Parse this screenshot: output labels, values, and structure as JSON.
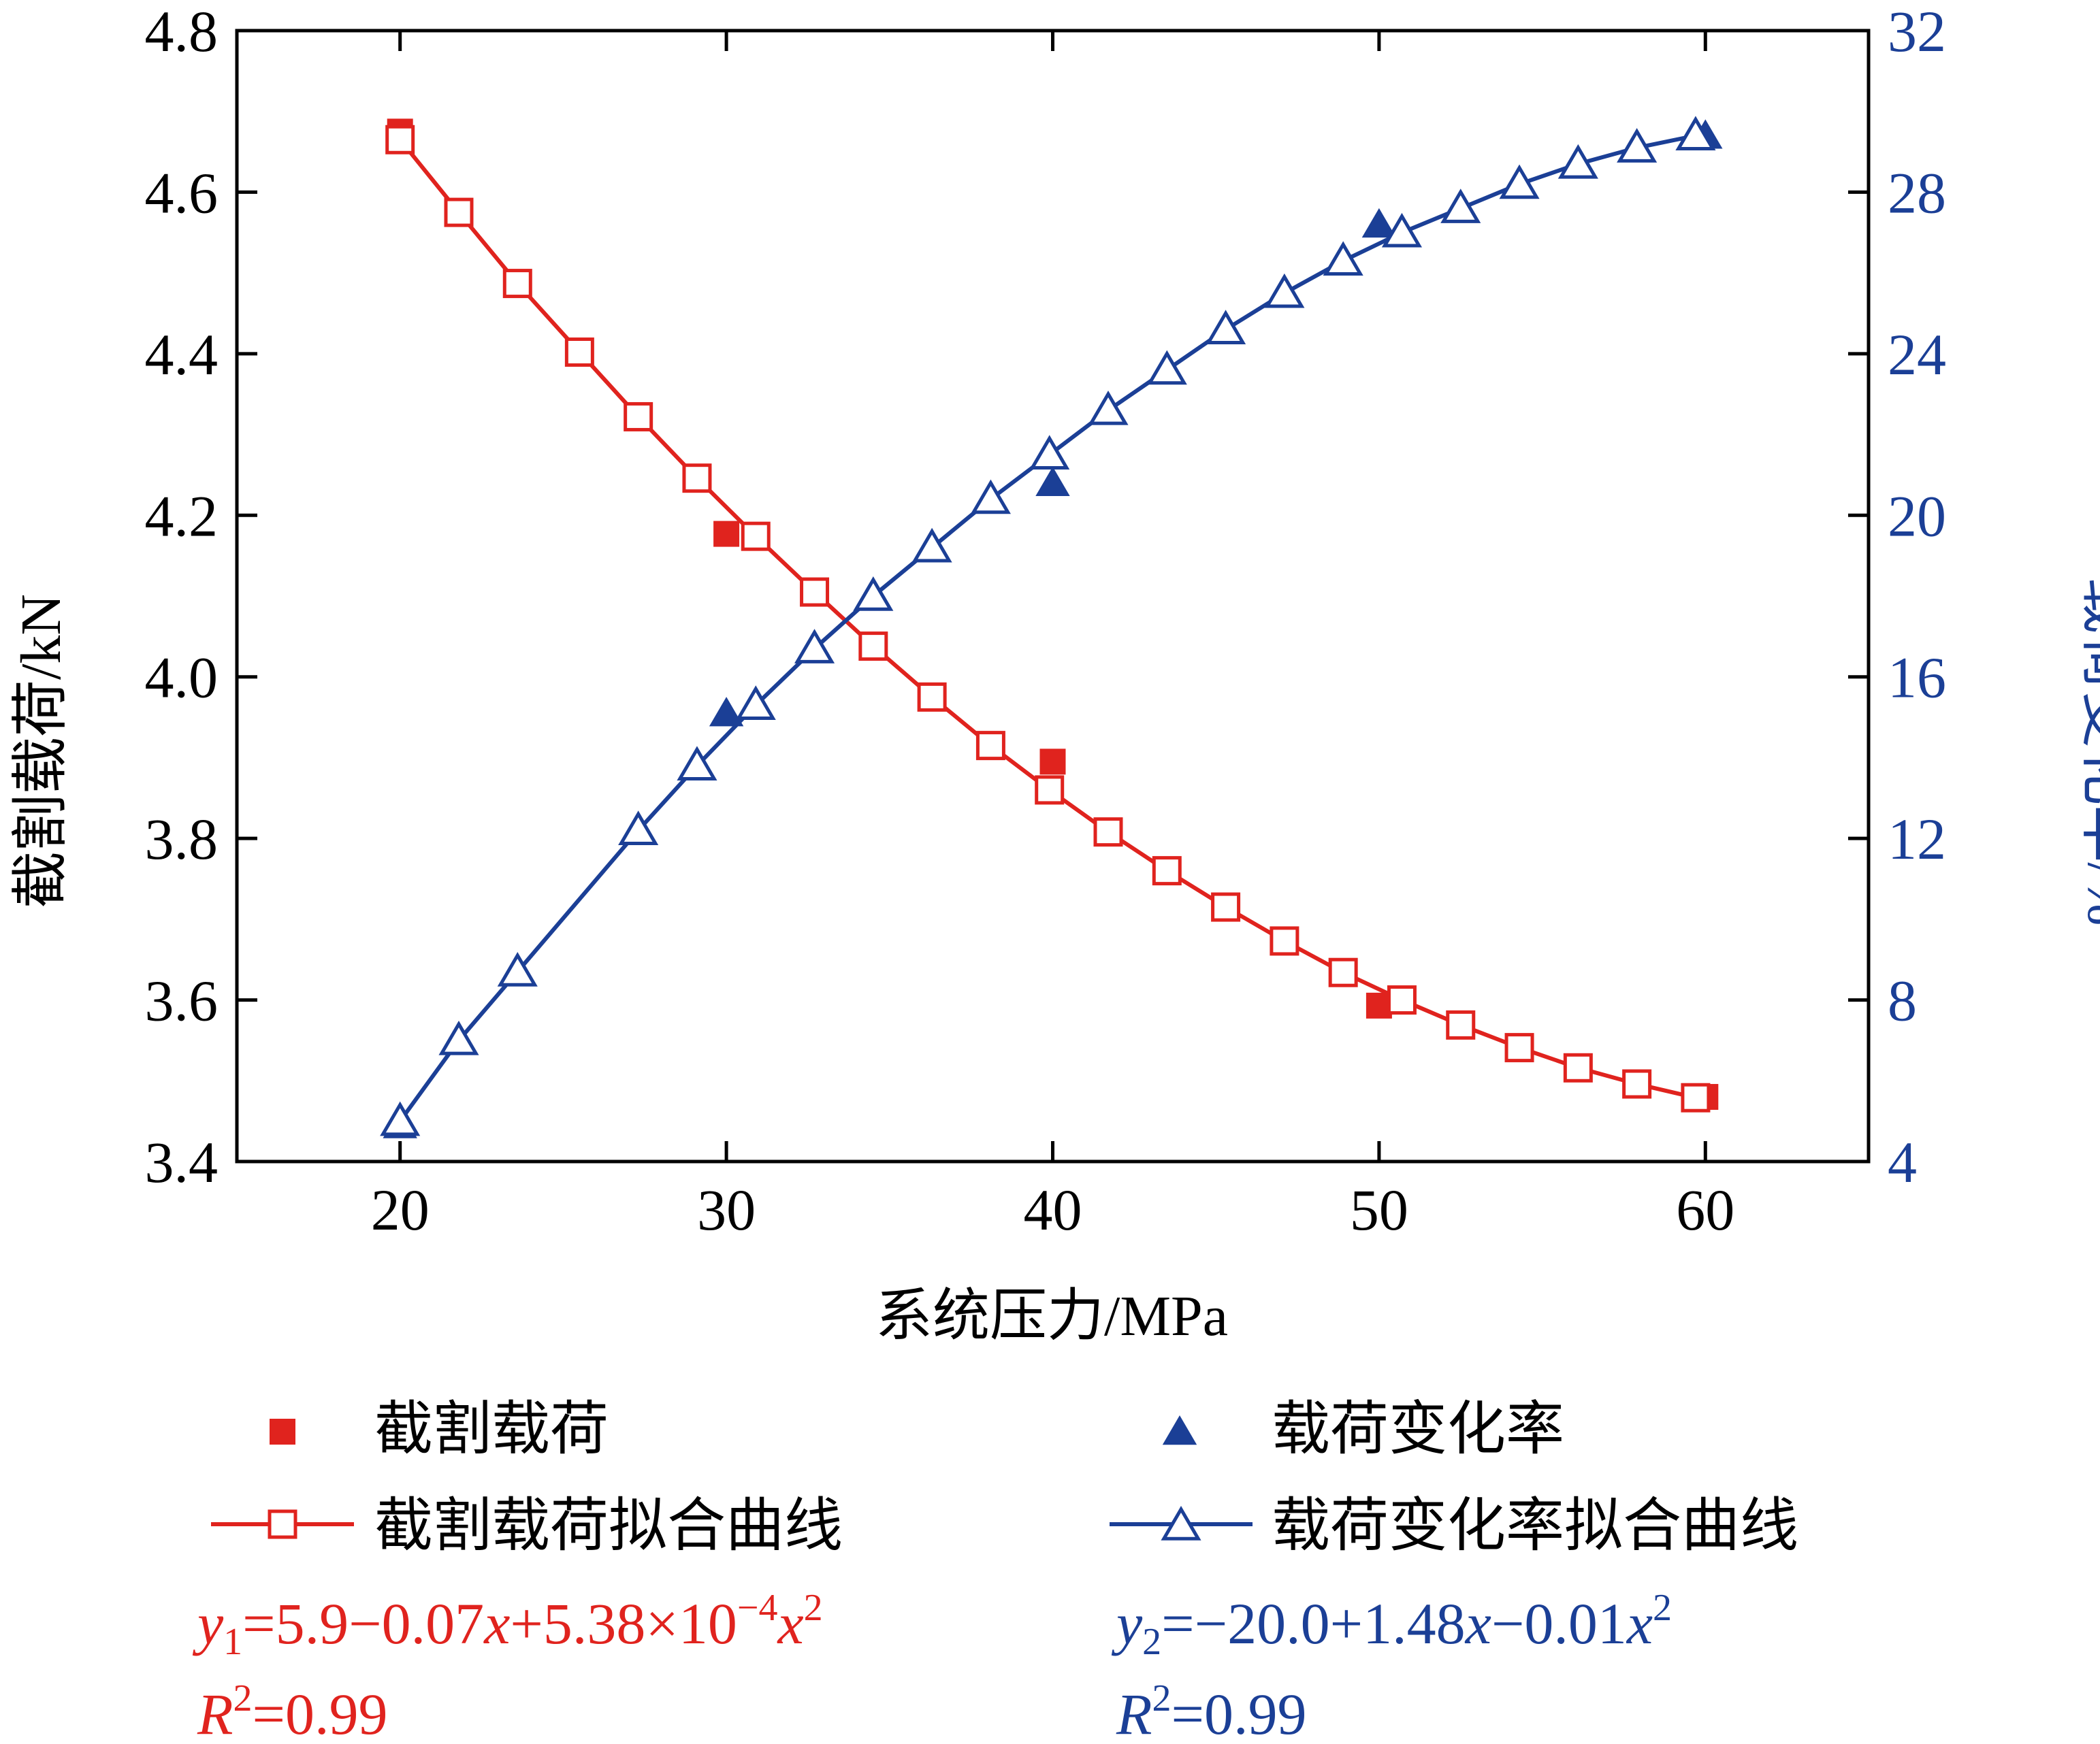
{
  "colors": {
    "red": "#e0231e",
    "blue": "#1b3f96",
    "axis": "#000000"
  },
  "chart_data": {
    "type": "scatter",
    "xlabel": "系统压力/MPa",
    "ylabel_left": "截割载荷/kN",
    "ylabel_right": "载荷变化率/%",
    "xlim": [
      15,
      65
    ],
    "ylim_left": [
      3.4,
      4.8
    ],
    "ylim_right": [
      4,
      32
    ],
    "x_ticks": [
      20,
      30,
      40,
      50,
      60
    ],
    "y_left_ticks": [
      3.4,
      3.6,
      3.8,
      4.0,
      4.2,
      4.4,
      4.6,
      4.8
    ],
    "y_left_tick_labels": [
      "3.4",
      "3.6",
      "3.8",
      "4.0",
      "4.2",
      "4.4",
      "4.6",
      "4.8"
    ],
    "y_right_ticks": [
      4,
      8,
      12,
      16,
      20,
      24,
      28,
      32
    ],
    "y_right_tick_labels": [
      "4",
      "8",
      "12",
      "16",
      "20",
      "24",
      "28",
      "32"
    ],
    "series": [
      {
        "name": "截割载荷",
        "axis": "left",
        "marker": "filled-square",
        "color": "#e0231e",
        "x": [
          20,
          30,
          40,
          50,
          60
        ],
        "y": [
          4.675,
          4.177,
          3.895,
          3.593,
          3.48
        ]
      },
      {
        "name": "载荷变化率",
        "axis": "right",
        "marker": "filled-triangle",
        "color": "#1b3f96",
        "x": [
          20,
          30,
          40,
          50,
          60
        ],
        "y": [
          4.9,
          15.1,
          20.8,
          27.2,
          29.4
        ]
      },
      {
        "name": "截割载荷拟合曲线",
        "axis": "left",
        "marker": "open-square-line",
        "color": "#e0231e",
        "x": [
          20,
          21.8,
          23.6,
          25.5,
          27.3,
          29.1,
          30.9,
          32.7,
          34.5,
          36.3,
          38.1,
          39.9,
          41.7,
          43.5,
          45.3,
          47.1,
          48.9,
          50.7,
          52.5,
          54.3,
          56.1,
          57.9,
          59.7
        ],
        "y": [
          4.665,
          4.575,
          4.487,
          4.402,
          4.322,
          4.246,
          4.174,
          4.105,
          4.038,
          3.975,
          3.915,
          3.86,
          3.808,
          3.76,
          3.715,
          3.673,
          3.634,
          3.6,
          3.569,
          3.541,
          3.516,
          3.496,
          3.479
        ]
      },
      {
        "name": "载荷变化率拟合曲线",
        "axis": "right",
        "marker": "open-triangle-line",
        "color": "#1b3f96",
        "x": [
          20,
          21.8,
          23.6,
          27.3,
          29.1,
          30.9,
          32.7,
          34.5,
          36.3,
          38.1,
          39.9,
          41.7,
          43.5,
          45.3,
          47.1,
          48.9,
          50.7,
          52.5,
          54.3,
          56.1,
          57.9,
          59.7
        ],
        "y": [
          5.0,
          7.0,
          8.7,
          12.2,
          13.8,
          15.3,
          16.7,
          18.0,
          19.2,
          20.4,
          21.5,
          22.6,
          23.6,
          24.6,
          25.5,
          26.3,
          27.0,
          27.6,
          28.2,
          28.7,
          29.1,
          29.4
        ]
      }
    ],
    "legend": {
      "placement": "bottom",
      "items": [
        {
          "label": "截割载荷",
          "series": 0
        },
        {
          "label": "载荷变化率",
          "series": 1
        },
        {
          "label": "截割载荷拟合曲线",
          "series": 2
        },
        {
          "label": "载荷变化率拟合曲线",
          "series": 3
        }
      ]
    },
    "annotations": {
      "red_equation": {
        "y": "y",
        "sub": "1",
        "eq1": "=5.9−0.07",
        "x1": "x",
        "eq2": "+5.38×10",
        "exp": "−4",
        "x2": "x",
        "pow": "2"
      },
      "red_r2": {
        "r": "R",
        "pow": "2",
        "value": "=0.99"
      },
      "blue_equation": {
        "y": "y",
        "sub": "2",
        "eq1": "=−20.0+1.48",
        "x1": "x",
        "eq2": "−0.01",
        "x2": "x",
        "pow": "2"
      },
      "blue_r2": {
        "r": "R",
        "pow": "2",
        "value": "=0.99"
      }
    }
  }
}
